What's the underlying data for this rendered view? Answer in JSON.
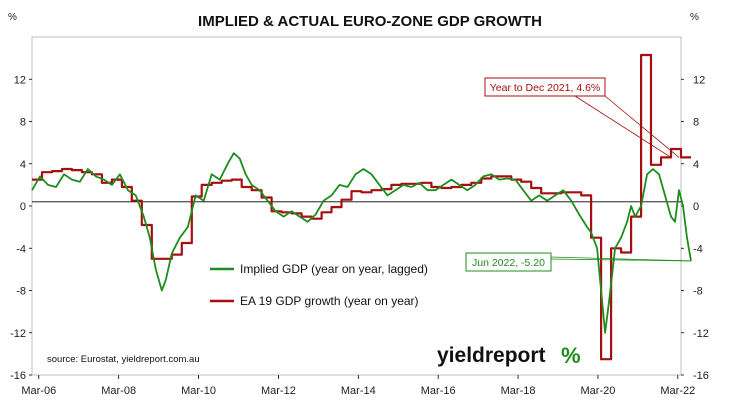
{
  "chart_data": {
    "type": "line",
    "title": "IMPLIED & ACTUAL EURO-ZONE GDP GROWTH",
    "ylabel_left": "%",
    "ylabel_right": "%",
    "ylim": [
      -16,
      16
    ],
    "yticks": [
      -16,
      -12,
      -8,
      -4,
      0,
      4,
      8,
      12
    ],
    "ytick_labels": [
      "-16",
      "-12",
      "-8",
      "-4",
      "0",
      "4",
      "8",
      "12"
    ],
    "xlim": [
      2006.0,
      2022.25
    ],
    "xticks": [
      2006.17,
      2008.17,
      2010.17,
      2012.17,
      2014.17,
      2016.17,
      2018.17,
      2020.17,
      2022.17
    ],
    "xtick_labels": [
      "Mar-06",
      "Mar-08",
      "Mar-10",
      "Mar-12",
      "Mar-14",
      "Mar-16",
      "Mar-18",
      "Mar-20",
      "Mar-22"
    ],
    "grid": false,
    "series": [
      {
        "name": "Implied GDP (year on year, lagged)",
        "color": "#1e8c1e",
        "x": [
          2006.0,
          2006.2,
          2006.4,
          2006.6,
          2006.8,
          2007.0,
          2007.2,
          2007.4,
          2007.6,
          2007.8,
          2008.0,
          2008.2,
          2008.4,
          2008.6,
          2008.8,
          2008.95,
          2009.1,
          2009.25,
          2009.35,
          2009.5,
          2009.7,
          2009.9,
          2010.1,
          2010.3,
          2010.5,
          2010.7,
          2010.9,
          2011.05,
          2011.2,
          2011.35,
          2011.5,
          2011.7,
          2011.9,
          2012.1,
          2012.3,
          2012.5,
          2012.7,
          2012.9,
          2013.1,
          2013.3,
          2013.5,
          2013.7,
          2013.9,
          2014.1,
          2014.3,
          2014.5,
          2014.7,
          2014.9,
          2015.1,
          2015.3,
          2015.5,
          2015.7,
          2015.9,
          2016.1,
          2016.3,
          2016.5,
          2016.7,
          2016.9,
          2017.1,
          2017.3,
          2017.5,
          2017.7,
          2017.9,
          2018.1,
          2018.3,
          2018.5,
          2018.7,
          2018.9,
          2019.1,
          2019.3,
          2019.5,
          2019.7,
          2019.9,
          2020.0,
          2020.15,
          2020.25,
          2020.35,
          2020.45,
          2020.6,
          2020.75,
          2020.9,
          2021.0,
          2021.1,
          2021.25,
          2021.4,
          2021.55,
          2021.7,
          2021.85,
          2022.0,
          2022.1,
          2022.2,
          2022.3,
          2022.4,
          2022.5
        ],
        "values": [
          1.5,
          2.8,
          2.0,
          1.8,
          3.0,
          2.5,
          2.3,
          3.5,
          2.8,
          2.5,
          2.0,
          3.0,
          1.5,
          1.0,
          -1.0,
          -3.0,
          -6.0,
          -8.0,
          -7.0,
          -4.5,
          -3.0,
          -2.0,
          1.0,
          0.5,
          3.0,
          2.5,
          4.0,
          5.0,
          4.5,
          3.0,
          2.0,
          1.5,
          0.5,
          -0.5,
          -1.0,
          -0.5,
          -1.0,
          -1.5,
          -0.8,
          0.5,
          1.0,
          2.0,
          1.8,
          3.0,
          3.5,
          3.0,
          2.0,
          1.0,
          1.5,
          2.0,
          1.8,
          2.2,
          1.5,
          1.5,
          2.0,
          2.5,
          2.0,
          1.5,
          2.0,
          2.8,
          3.0,
          2.5,
          2.6,
          2.5,
          1.5,
          0.5,
          1.0,
          0.5,
          1.0,
          1.5,
          0.5,
          -0.8,
          -2.0,
          -2.5,
          -4.0,
          -8.0,
          -12.0,
          -9.0,
          -4.0,
          -3.0,
          -1.5,
          0.0,
          -1.0,
          0.0,
          3.0,
          3.5,
          3.0,
          1.0,
          -1.0,
          -1.5,
          1.5,
          0.0,
          -3.0,
          -5.2
        ]
      },
      {
        "name": "EA 19 GDP growth (year on year)",
        "color": "#a50f0f",
        "x": [
          2006.0,
          2006.25,
          2006.5,
          2006.75,
          2007.0,
          2007.25,
          2007.5,
          2007.75,
          2008.0,
          2008.25,
          2008.5,
          2008.75,
          2009.0,
          2009.25,
          2009.5,
          2009.75,
          2010.0,
          2010.25,
          2010.5,
          2010.75,
          2011.0,
          2011.25,
          2011.5,
          2011.75,
          2012.0,
          2012.25,
          2012.5,
          2012.75,
          2013.0,
          2013.25,
          2013.5,
          2013.75,
          2014.0,
          2014.25,
          2014.5,
          2014.75,
          2015.0,
          2015.25,
          2015.5,
          2015.75,
          2016.0,
          2016.25,
          2016.5,
          2016.75,
          2017.0,
          2017.25,
          2017.5,
          2017.75,
          2018.0,
          2018.25,
          2018.5,
          2018.75,
          2019.0,
          2019.25,
          2019.5,
          2019.75,
          2020.0,
          2020.25,
          2020.5,
          2020.75,
          2021.0,
          2021.25,
          2021.5,
          2021.75,
          2022.0,
          2022.25
        ],
        "values": [
          2.5,
          3.2,
          3.3,
          3.5,
          3.4,
          3.2,
          3.0,
          2.2,
          2.5,
          1.8,
          0.5,
          -1.8,
          -5.0,
          -5.0,
          -4.6,
          -3.5,
          0.9,
          2.0,
          2.2,
          2.4,
          2.5,
          1.8,
          1.5,
          0.8,
          -0.5,
          -0.6,
          -0.7,
          -1.0,
          -1.2,
          -0.6,
          -0.1,
          0.6,
          1.4,
          1.3,
          1.5,
          1.6,
          2.0,
          2.1,
          2.1,
          2.2,
          1.8,
          1.7,
          1.8,
          2.0,
          2.2,
          2.6,
          2.8,
          2.8,
          2.5,
          2.3,
          1.7,
          1.2,
          1.2,
          1.3,
          1.3,
          1.0,
          -3.0,
          -14.5,
          -4.0,
          -4.4,
          -1.0,
          14.3,
          3.9,
          4.6,
          5.4,
          4.6
        ]
      }
    ],
    "legend": {
      "placement": "center"
    },
    "annotations": [
      {
        "text": "Year to Dec 2021, 4.6%",
        "color": "#a50f0f",
        "target_x": 2022.0,
        "target_y": 4.6
      },
      {
        "text": "Jun 2022, -5.20",
        "color": "#1e8c1e",
        "target_x": 2022.5,
        "target_y": -5.2
      }
    ],
    "source": "source: Eurostat, yieldreport.com.au"
  },
  "logo": {
    "word": "yieldreport",
    "symbol": "%"
  }
}
